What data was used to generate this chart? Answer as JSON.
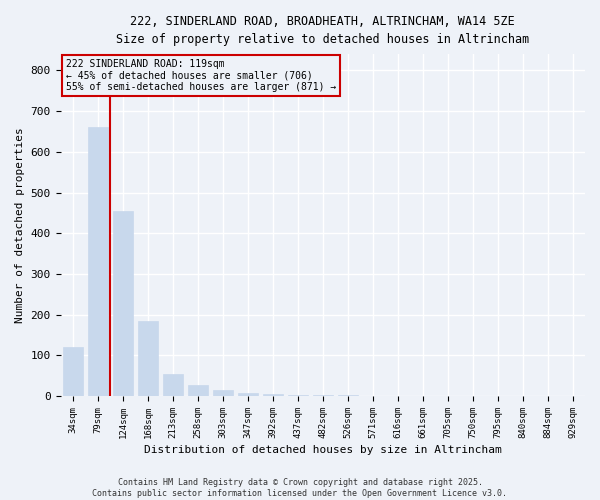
{
  "title": "222, SINDERLAND ROAD, BROADHEATH, ALTRINCHAM, WA14 5ZE",
  "subtitle": "Size of property relative to detached houses in Altrincham",
  "xlabel": "Distribution of detached houses by size in Altrincham",
  "ylabel": "Number of detached properties",
  "categories": [
    "34sqm",
    "79sqm",
    "124sqm",
    "168sqm",
    "213sqm",
    "258sqm",
    "303sqm",
    "347sqm",
    "392sqm",
    "437sqm",
    "482sqm",
    "526sqm",
    "571sqm",
    "616sqm",
    "661sqm",
    "705sqm",
    "750sqm",
    "795sqm",
    "840sqm",
    "884sqm",
    "929sqm"
  ],
  "values": [
    120,
    660,
    455,
    185,
    55,
    28,
    14,
    8,
    5,
    3,
    2,
    2,
    1,
    1,
    1,
    1,
    0,
    0,
    0,
    0,
    0
  ],
  "bar_color": "#c8d8ec",
  "vline_x": 1.5,
  "vline_color": "#cc0000",
  "annotation_text": "222 SINDERLAND ROAD: 119sqm\n← 45% of detached houses are smaller (706)\n55% of semi-detached houses are larger (871) →",
  "annotation_box_color": "#cc0000",
  "ylim": [
    0,
    840
  ],
  "yticks": [
    0,
    100,
    200,
    300,
    400,
    500,
    600,
    700,
    800
  ],
  "footer_line1": "Contains HM Land Registry data © Crown copyright and database right 2025.",
  "footer_line2": "Contains public sector information licensed under the Open Government Licence v3.0.",
  "bg_color": "#eef2f8",
  "grid_color": "#ffffff"
}
